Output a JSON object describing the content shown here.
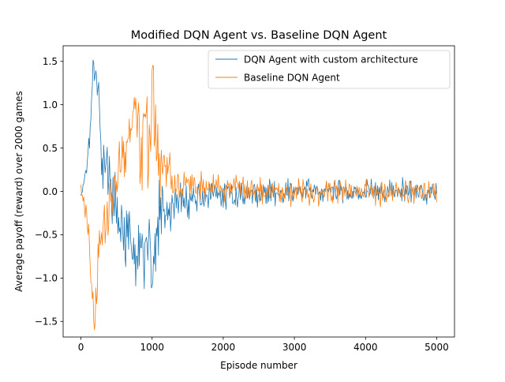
{
  "chart_data": {
    "type": "line",
    "title": "Modified DQN Agent vs. Baseline DQN Agent",
    "xlabel": "Episode number",
    "ylabel": "Average payoff (reward) over 2000 games",
    "xlim": [
      -250,
      5250
    ],
    "ylim": [
      -1.68,
      1.68
    ],
    "x_ticks": [
      0,
      1000,
      2000,
      3000,
      4000,
      5000
    ],
    "x_tick_labels": [
      "0",
      "1000",
      "2000",
      "3000",
      "4000",
      "5000"
    ],
    "y_ticks": [
      -1.5,
      -1.0,
      -0.5,
      0.0,
      0.5,
      1.0,
      1.5
    ],
    "y_tick_labels": [
      "−1.5",
      "−1.0",
      "−0.5",
      "0.0",
      "0.5",
      "1.0",
      "1.5"
    ],
    "grid": false,
    "legend_position": "top-right",
    "x": [
      0,
      100,
      150,
      200,
      250,
      300,
      400,
      500,
      600,
      700,
      800,
      850,
      900,
      950,
      1000,
      1100,
      1200,
      1300,
      1400,
      1500,
      1700,
      2000,
      2500,
      3000,
      3500,
      4000,
      4500,
      5000
    ],
    "series": [
      {
        "name": "DQN Agent with custom architecture",
        "color": "#1f77b4",
        "values": [
          -0.05,
          0.4,
          1.2,
          1.5,
          0.9,
          0.45,
          0.15,
          -0.2,
          -0.45,
          -0.7,
          -0.9,
          -0.3,
          -1.05,
          -0.4,
          -1.1,
          -0.25,
          -0.3,
          -0.15,
          -0.1,
          -0.1,
          -0.05,
          -0.05,
          -0.02,
          0.0,
          0.0,
          0.0,
          0.0,
          0.0
        ],
        "noise": [
          0.05,
          0.15,
          0.2,
          0.15,
          0.35,
          0.3,
          0.2,
          0.2,
          0.25,
          0.3,
          0.3,
          0.35,
          0.4,
          0.35,
          0.4,
          0.3,
          0.22,
          0.18,
          0.16,
          0.13,
          0.12,
          0.1,
          0.1,
          0.1,
          0.1,
          0.1,
          0.1,
          0.1
        ]
      },
      {
        "name": "Baseline DQN Agent",
        "color": "#ff7f0e",
        "values": [
          0.05,
          -0.4,
          -1.2,
          -1.5,
          -0.9,
          -0.45,
          -0.15,
          0.2,
          0.45,
          0.7,
          0.9,
          0.3,
          1.05,
          0.4,
          1.1,
          0.25,
          0.3,
          0.15,
          0.1,
          0.1,
          0.05,
          0.05,
          0.02,
          0.0,
          0.0,
          0.0,
          0.0,
          0.0
        ],
        "noise": [
          0.05,
          0.15,
          0.2,
          0.15,
          0.35,
          0.3,
          0.2,
          0.2,
          0.25,
          0.3,
          0.3,
          0.35,
          0.4,
          0.35,
          0.4,
          0.3,
          0.22,
          0.18,
          0.16,
          0.13,
          0.12,
          0.1,
          0.1,
          0.1,
          0.1,
          0.1,
          0.1,
          0.1
        ]
      }
    ]
  }
}
